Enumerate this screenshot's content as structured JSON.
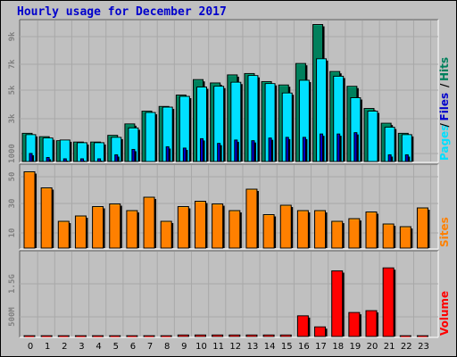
{
  "title": "Hourly usage for December 2017",
  "colors": {
    "background": "#c0c0c0",
    "title": "#0000cc",
    "hits": "#00805c",
    "files": "#00e0ff",
    "pages": "#0000cc",
    "sites": "#ff8000",
    "volume": "#ff0000",
    "panel_dark": "#606060",
    "panel_light": "#ffffff"
  },
  "chart_data": [
    {
      "type": "bar",
      "panel": "requests",
      "categories": [
        "0",
        "1",
        "2",
        "3",
        "4",
        "5",
        "6",
        "7",
        "8",
        "9",
        "10",
        "11",
        "12",
        "13",
        "14",
        "15",
        "16",
        "17",
        "18",
        "19",
        "20",
        "21",
        "22",
        "23"
      ],
      "legend": [
        {
          "label": "Pages",
          "color": "#00e0ff"
        },
        {
          "label": "Files",
          "color": "#0000cc"
        },
        {
          "label": "Hits",
          "color": "#00805c"
        }
      ],
      "y_ticks": [
        "1000",
        "3k",
        "5k",
        "7k",
        "9k"
      ],
      "ylim": [
        0,
        10500
      ],
      "series": [
        {
          "name": "Hits",
          "values": [
            2100,
            1850,
            1550,
            1450,
            1450,
            1950,
            2800,
            3750,
            4100,
            4950,
            6100,
            5850,
            6450,
            6550,
            5950,
            5700,
            7300,
            10200,
            6700,
            5600,
            3950,
            2850,
            2100,
            0
          ]
        },
        {
          "name": "Files",
          "values": [
            2000,
            1750,
            1600,
            1400,
            1400,
            1800,
            2500,
            3650,
            4050,
            4850,
            5550,
            5600,
            5900,
            6400,
            5800,
            5100,
            6050,
            7650,
            6350,
            4750,
            3750,
            2550,
            2000,
            0
          ]
        },
        {
          "name": "Pages",
          "values": [
            600,
            300,
            200,
            200,
            200,
            500,
            900,
            0,
            1100,
            1000,
            1700,
            1350,
            1600,
            1550,
            1750,
            1800,
            1800,
            2050,
            2050,
            2150,
            0,
            500,
            500,
            0
          ]
        }
      ]
    },
    {
      "type": "bar",
      "panel": "sites",
      "categories": [
        "0",
        "1",
        "2",
        "3",
        "4",
        "5",
        "6",
        "7",
        "8",
        "9",
        "10",
        "11",
        "12",
        "13",
        "14",
        "15",
        "16",
        "17",
        "18",
        "19",
        "20",
        "21",
        "22",
        "23"
      ],
      "legend": [
        {
          "label": "Sites",
          "color": "#ff8000"
        }
      ],
      "y_ticks": [
        "10",
        "30",
        "50"
      ],
      "ylim": [
        0,
        62
      ],
      "series": [
        {
          "name": "Sites",
          "values": [
            57,
            45,
            20,
            24,
            31,
            33,
            28,
            38,
            20,
            31,
            35,
            33,
            28,
            44,
            25,
            32,
            28,
            28,
            20,
            22,
            27,
            18,
            16,
            30
          ]
        }
      ]
    },
    {
      "type": "bar",
      "panel": "volume",
      "categories": [
        "0",
        "1",
        "2",
        "3",
        "4",
        "5",
        "6",
        "7",
        "8",
        "9",
        "10",
        "11",
        "12",
        "13",
        "14",
        "15",
        "16",
        "17",
        "18",
        "19",
        "20",
        "21",
        "22",
        "23"
      ],
      "legend": [
        {
          "label": "Volume",
          "color": "#ff0000"
        }
      ],
      "y_ticks": [
        "500M",
        "1.5G"
      ],
      "ylim": [
        0,
        2300
      ],
      "series": [
        {
          "name": "Volume",
          "values": [
            20,
            20,
            20,
            20,
            20,
            20,
            20,
            20,
            20,
            40,
            40,
            40,
            40,
            40,
            40,
            40,
            560,
            260,
            1780,
            650,
            700,
            1860,
            20,
            20
          ]
        }
      ]
    }
  ]
}
